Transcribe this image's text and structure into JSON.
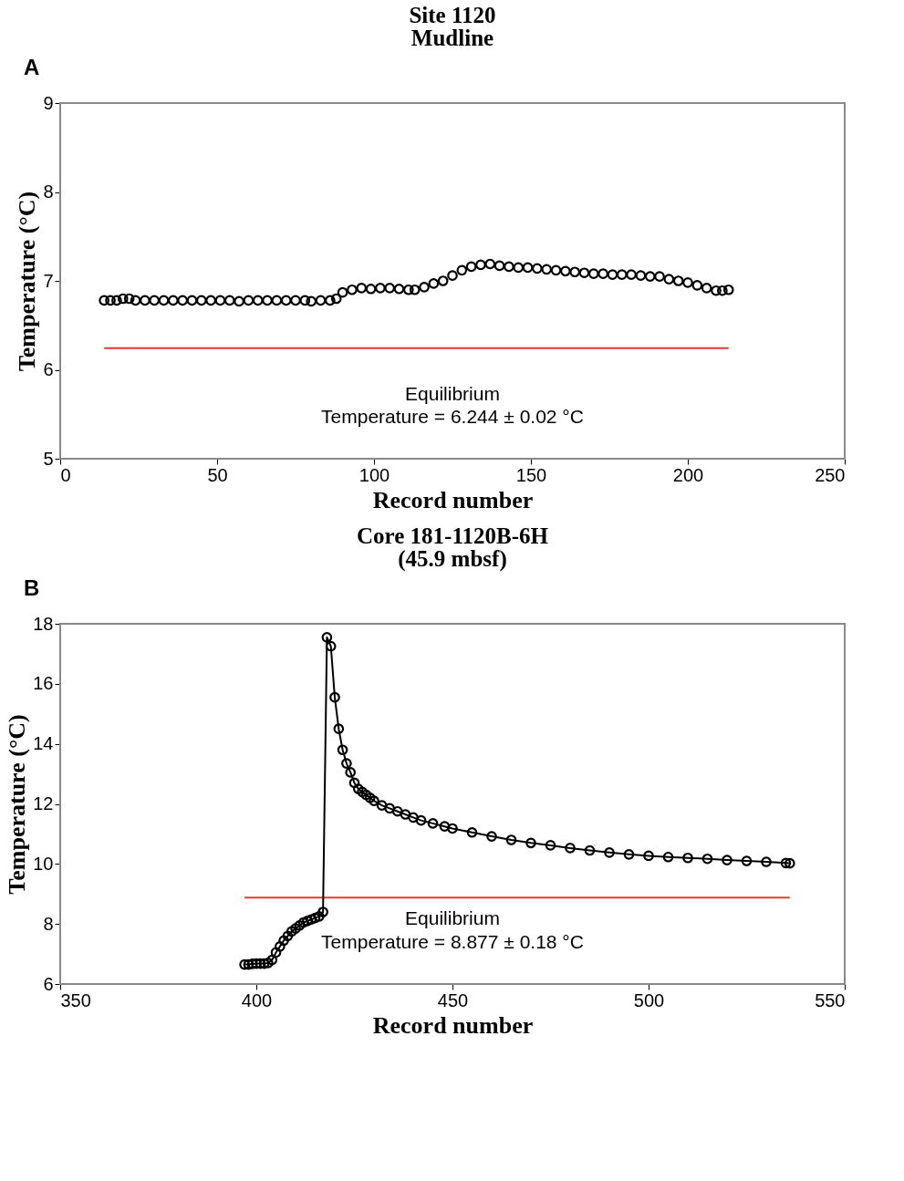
{
  "chart_data": [
    {
      "type": "scatter",
      "title": "Site 1120",
      "subtitle": "Mudline",
      "xlabel": "Record number",
      "ylabel": "Temperature (°C)",
      "marker": "circle",
      "grid": false,
      "legend": false,
      "xlim": [
        0,
        250
      ],
      "xticks": [
        0,
        50,
        100,
        150,
        200,
        250
      ],
      "ylim": [
        5,
        9
      ],
      "yticks": [
        5,
        6,
        7,
        8,
        9
      ],
      "annotations": [
        "A",
        "Equilibrium",
        "Temperature  =  6.244  ±  0.02 °C"
      ],
      "ref_lines": [
        {
          "axis": "y",
          "value": 6.244,
          "color": "#e03c31"
        }
      ],
      "series": [
        {
          "color": "#000000",
          "x": [
            14,
            16,
            18,
            20,
            22,
            24,
            27,
            30,
            33,
            36,
            39,
            42,
            45,
            48,
            51,
            54,
            57,
            60,
            63,
            66,
            69,
            72,
            75,
            78,
            80,
            83,
            86,
            88,
            90,
            93,
            96,
            99,
            102,
            105,
            108,
            111,
            113,
            116,
            119,
            122,
            125,
            128,
            131,
            134,
            137,
            140,
            143,
            146,
            149,
            152,
            155,
            158,
            161,
            164,
            167,
            170,
            173,
            176,
            179,
            182,
            185,
            188,
            191,
            194,
            197,
            200,
            203,
            206,
            209,
            211,
            213
          ],
          "values": [
            6.78,
            6.78,
            6.78,
            6.8,
            6.8,
            6.78,
            6.78,
            6.78,
            6.78,
            6.78,
            6.78,
            6.78,
            6.78,
            6.78,
            6.78,
            6.78,
            6.77,
            6.78,
            6.78,
            6.78,
            6.78,
            6.78,
            6.78,
            6.78,
            6.77,
            6.78,
            6.78,
            6.8,
            6.87,
            6.9,
            6.92,
            6.91,
            6.92,
            6.92,
            6.91,
            6.9,
            6.9,
            6.93,
            6.97,
            7.0,
            7.06,
            7.12,
            7.16,
            7.18,
            7.19,
            7.17,
            7.16,
            7.15,
            7.15,
            7.14,
            7.13,
            7.12,
            7.11,
            7.1,
            7.09,
            7.08,
            7.08,
            7.07,
            7.07,
            7.07,
            7.06,
            7.05,
            7.05,
            7.02,
            7.0,
            6.98,
            6.95,
            6.92,
            6.89,
            6.89,
            6.9
          ]
        }
      ]
    },
    {
      "type": "line",
      "title": "Core 181-1120B-6H",
      "subtitle": "(45.9 mbsf)",
      "xlabel": "Record number",
      "ylabel": "Temperature (°C)",
      "marker": "circle",
      "line_style": "solid",
      "grid": false,
      "legend": false,
      "xlim": [
        350,
        550
      ],
      "xticks": [
        350,
        400,
        450,
        500,
        550
      ],
      "ylim": [
        6,
        18
      ],
      "yticks": [
        6,
        8,
        10,
        12,
        14,
        16,
        18
      ],
      "annotations": [
        "B",
        "Equilibrium",
        "Temperature  =  8.877  ±  0.18 °C"
      ],
      "ref_lines": [
        {
          "axis": "y",
          "value": 8.877,
          "color": "#e03c31"
        }
      ],
      "series": [
        {
          "color": "#000000",
          "x": [
            397,
            398,
            399,
            400,
            401,
            402,
            403,
            404,
            405,
            406,
            407,
            408,
            409,
            410,
            411,
            412,
            413,
            414,
            415,
            416,
            417,
            418,
            419,
            420,
            421,
            422,
            423,
            424,
            425,
            426,
            427,
            428,
            429,
            430,
            432,
            434,
            436,
            438,
            440,
            442,
            445,
            448,
            450,
            455,
            460,
            465,
            470,
            475,
            480,
            485,
            490,
            495,
            500,
            505,
            510,
            515,
            520,
            525,
            530,
            535,
            536
          ],
          "values": [
            6.65,
            6.65,
            6.67,
            6.68,
            6.68,
            6.68,
            6.7,
            6.8,
            7.05,
            7.25,
            7.45,
            7.6,
            7.75,
            7.85,
            7.95,
            8.05,
            8.1,
            8.15,
            8.2,
            8.25,
            8.4,
            17.55,
            17.25,
            15.55,
            14.5,
            13.8,
            13.35,
            13.05,
            12.7,
            12.5,
            12.4,
            12.3,
            12.2,
            12.1,
            11.95,
            11.85,
            11.75,
            11.65,
            11.55,
            11.45,
            11.35,
            11.25,
            11.18,
            11.05,
            10.92,
            10.8,
            10.7,
            10.62,
            10.53,
            10.45,
            10.38,
            10.32,
            10.27,
            10.23,
            10.2,
            10.17,
            10.13,
            10.1,
            10.07,
            10.03,
            10.02
          ]
        }
      ]
    }
  ]
}
